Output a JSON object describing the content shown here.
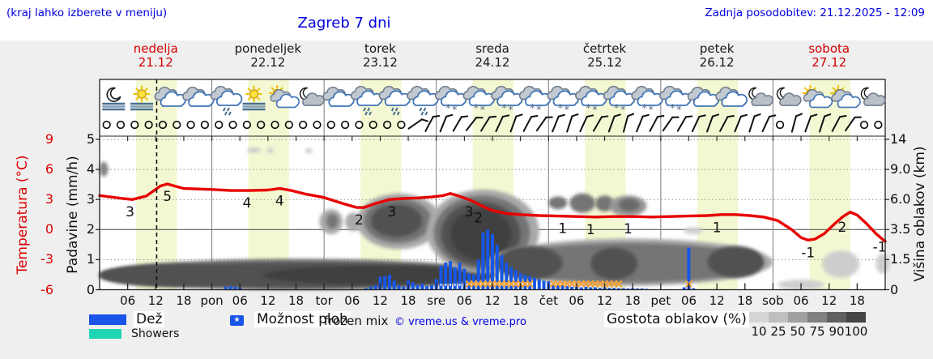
{
  "header": {
    "hint": "(kraj lahko izberete v meniju)",
    "title": "Zagreb 7 dni",
    "updated": "Zadnja posodobitev: 21.12.2025 - 12:09"
  },
  "days": [
    {
      "name": "nedelja",
      "date": "21.12",
      "color": "#d40000"
    },
    {
      "name": "ponedeljek",
      "date": "22.12",
      "color": "#1a1a1a"
    },
    {
      "name": "torek",
      "date": "23.12",
      "color": "#1a1a1a"
    },
    {
      "name": "sreda",
      "date": "24.12",
      "color": "#1a1a1a"
    },
    {
      "name": "četrtek",
      "date": "25.12",
      "color": "#1a1a1a"
    },
    {
      "name": "petek",
      "date": "26.12",
      "color": "#1a1a1a"
    },
    {
      "name": "sobota",
      "date": "27.12",
      "color": "#d40000"
    }
  ],
  "axes": {
    "temp": {
      "title": "Temperatura (°C)",
      "color": "#dd0000",
      "ticks": [
        "9",
        "6",
        "3",
        "0",
        "-3",
        "-6"
      ]
    },
    "precip": {
      "title": "Padavine (mm/h)",
      "ticks": [
        "5",
        "4",
        "3",
        "2",
        "1",
        "0"
      ]
    },
    "cloud": {
      "title": "Višina oblakov (km)",
      "ticks": [
        "14",
        "9.0",
        "6.0",
        "3.5",
        "1.5",
        "0"
      ]
    }
  },
  "legend": {
    "rain": "Dež",
    "rain_color": "#1855e8",
    "showers": "Showers",
    "showers_color": "#1fd5b4",
    "chance": "Možnost ploh",
    "chance_star": "★",
    "frozen": "frozen mix",
    "copyright": "© vreme.us & vreme.pro",
    "cloud_density": "Gostota oblakov (%)",
    "density_ticks": [
      "10",
      "25",
      "50",
      "75",
      "90",
      "100"
    ]
  },
  "chart_data": {
    "type": "meteogram",
    "title": "Zagreb 7 dni",
    "x_unit": "hours from 21.12 00:00",
    "x_range": [
      0,
      168
    ],
    "now_hour": 12.2,
    "daylight_band": {
      "start_hour": 7.8,
      "length_hours": 8.7,
      "color": "#f4f8d2"
    },
    "temperature": {
      "unit": "°C",
      "color": "#e80000",
      "axis_range": [
        -6,
        9
      ],
      "points": [
        [
          0,
          3.4
        ],
        [
          5,
          3.1
        ],
        [
          7,
          3.0
        ],
        [
          10,
          3.35
        ],
        [
          13,
          4.35
        ],
        [
          14.5,
          4.55
        ],
        [
          16,
          4.35
        ],
        [
          18,
          4.1
        ],
        [
          21,
          4.05
        ],
        [
          24,
          4.0
        ],
        [
          28,
          3.9
        ],
        [
          32,
          3.9
        ],
        [
          36,
          3.95
        ],
        [
          38.5,
          4.1
        ],
        [
          41,
          3.9
        ],
        [
          44,
          3.55
        ],
        [
          48,
          3.2
        ],
        [
          52,
          2.6
        ],
        [
          55,
          2.2
        ],
        [
          56.5,
          2.2
        ],
        [
          59,
          2.6
        ],
        [
          62,
          3.0
        ],
        [
          65,
          3.1
        ],
        [
          68,
          3.15
        ],
        [
          71,
          3.25
        ],
        [
          73.5,
          3.4
        ],
        [
          75,
          3.6
        ],
        [
          76.5,
          3.4
        ],
        [
          78,
          3.15
        ],
        [
          80,
          2.8
        ],
        [
          82,
          2.3
        ],
        [
          84,
          1.9
        ],
        [
          87,
          1.6
        ],
        [
          90,
          1.5
        ],
        [
          94,
          1.4
        ],
        [
          98,
          1.35
        ],
        [
          102,
          1.3
        ],
        [
          106,
          1.25
        ],
        [
          110,
          1.3
        ],
        [
          114,
          1.3
        ],
        [
          118,
          1.25
        ],
        [
          122,
          1.3
        ],
        [
          126,
          1.35
        ],
        [
          130,
          1.4
        ],
        [
          133,
          1.5
        ],
        [
          136,
          1.5
        ],
        [
          139,
          1.4
        ],
        [
          142,
          1.25
        ],
        [
          145,
          0.9
        ],
        [
          148,
          0.0
        ],
        [
          150,
          -0.8
        ],
        [
          151.5,
          -1.05
        ],
        [
          153,
          -0.95
        ],
        [
          155,
          -0.4
        ],
        [
          157,
          0.5
        ],
        [
          159,
          1.3
        ],
        [
          160.5,
          1.75
        ],
        [
          162,
          1.45
        ],
        [
          164,
          0.6
        ],
        [
          166,
          -0.4
        ],
        [
          168,
          -1.2
        ]
      ],
      "labels": [
        [
          6.5,
          3.0,
          "3"
        ],
        [
          14.5,
          4.55,
          "5"
        ],
        [
          31.5,
          3.9,
          "4"
        ],
        [
          38.5,
          4.1,
          "4"
        ],
        [
          55.5,
          2.2,
          "2"
        ],
        [
          62.5,
          3.0,
          "3"
        ],
        [
          79,
          3.0,
          "3"
        ],
        [
          81,
          2.4,
          "2"
        ],
        [
          99,
          1.35,
          "1"
        ],
        [
          105,
          1.25,
          "1"
        ],
        [
          113,
          1.3,
          "1"
        ],
        [
          132,
          1.45,
          "1"
        ],
        [
          151.5,
          -1.05,
          "-1"
        ],
        [
          158.8,
          1.5,
          "2"
        ],
        [
          166.8,
          -0.5,
          "-1"
        ]
      ]
    },
    "precipitation": {
      "unit": "mm/h",
      "color": "#1757e8",
      "axis_range": [
        0,
        5
      ],
      "bars": [
        [
          27,
          0.1
        ],
        [
          28,
          0.12
        ],
        [
          29,
          0.1
        ],
        [
          30,
          0.08
        ],
        [
          57,
          0.05
        ],
        [
          58,
          0.1
        ],
        [
          59,
          0.15
        ],
        [
          60,
          0.43
        ],
        [
          61,
          0.45
        ],
        [
          62,
          0.5
        ],
        [
          63,
          0.3
        ],
        [
          64,
          0.15
        ],
        [
          65,
          0.1
        ],
        [
          66,
          0.3
        ],
        [
          67,
          0.25
        ],
        [
          68,
          0.15
        ],
        [
          69,
          0.2
        ],
        [
          70,
          0.12
        ],
        [
          71,
          0.15
        ],
        [
          72,
          0.35
        ],
        [
          73,
          0.8
        ],
        [
          74,
          0.9
        ],
        [
          75,
          0.95
        ],
        [
          76,
          0.75
        ],
        [
          77,
          0.9
        ],
        [
          78,
          0.7
        ],
        [
          79,
          0.55
        ],
        [
          80,
          0.5
        ],
        [
          81,
          1.0
        ],
        [
          82,
          1.9
        ],
        [
          83,
          2.0
        ],
        [
          84,
          1.85
        ],
        [
          85,
          1.5
        ],
        [
          86,
          1.15
        ],
        [
          87,
          0.9
        ],
        [
          88,
          0.75
        ],
        [
          89,
          0.65
        ],
        [
          90,
          0.55
        ],
        [
          91,
          0.5
        ],
        [
          92,
          0.45
        ],
        [
          93,
          0.4
        ],
        [
          94,
          0.35
        ],
        [
          95,
          0.3
        ],
        [
          96,
          0.28
        ],
        [
          97,
          0.22
        ],
        [
          98,
          0.18
        ],
        [
          99,
          0.15
        ],
        [
          100,
          0.12
        ],
        [
          101,
          0.1
        ],
        [
          102,
          0.1
        ],
        [
          103,
          0.08
        ],
        [
          104,
          0.1
        ],
        [
          105,
          0.08
        ],
        [
          106,
          0.08
        ],
        [
          107,
          0.06
        ],
        [
          108,
          0.08
        ],
        [
          109,
          0.06
        ],
        [
          110,
          0.06
        ],
        [
          111,
          0.05
        ],
        [
          112,
          0.05
        ],
        [
          113,
          0.04
        ],
        [
          114,
          0.05
        ],
        [
          115,
          0.04
        ],
        [
          116,
          0.04
        ],
        [
          117,
          0.03
        ],
        [
          125,
          0.08
        ],
        [
          126,
          1.4
        ],
        [
          127,
          0.05
        ]
      ]
    },
    "frozen_mix_hours": [
      79,
      80,
      81,
      82,
      83,
      84,
      85,
      86,
      87,
      88,
      89,
      90,
      91,
      92,
      97,
      98,
      99,
      100,
      101,
      102,
      103,
      104,
      105,
      106,
      107,
      108,
      109,
      110,
      111,
      126
    ],
    "frozen_mix_color": "#f2a33c",
    "shower_possible_hours": [
      73,
      74,
      75,
      76,
      77,
      78,
      86,
      87,
      88,
      89,
      90,
      91,
      92
    ],
    "cloud_layers": {
      "y_unit": "km",
      "axis_values_km": [
        0,
        1.5,
        3.5,
        6,
        9,
        14
      ],
      "density_colors": {
        "25": "#cdcdcd",
        "50": "#a9a9a9",
        "60": "#969696",
        "70": "#838383",
        "75": "#747474",
        "80": "#6a6a6a",
        "90": "#515151",
        "100": "#404040"
      },
      "blobs": [
        [
          0,
          85,
          0,
          1.55,
          75
        ],
        [
          0,
          84,
          0.1,
          1.35,
          90
        ],
        [
          0,
          30,
          0.15,
          1.25,
          90
        ],
        [
          35,
          84,
          0.25,
          1.2,
          100
        ],
        [
          47,
          52,
          3.2,
          5.2,
          50
        ],
        [
          48.5,
          51,
          3.6,
          4.8,
          75
        ],
        [
          52.5,
          56,
          3.4,
          4.9,
          50
        ],
        [
          55,
          73,
          2.2,
          6.6,
          50
        ],
        [
          56.5,
          71,
          2.6,
          6.1,
          75
        ],
        [
          58,
          69,
          3.0,
          5.6,
          90
        ],
        [
          70,
          94,
          0.8,
          7.0,
          50
        ],
        [
          71.5,
          92,
          1.0,
          6.4,
          75
        ],
        [
          73,
          90,
          1.2,
          5.8,
          90
        ],
        [
          75,
          88,
          1.5,
          5.2,
          100
        ],
        [
          83,
          144,
          0.2,
          2.9,
          50
        ],
        [
          84,
          142,
          0.35,
          2.6,
          75
        ],
        [
          85,
          99,
          0.5,
          2.4,
          90
        ],
        [
          105,
          115,
          0.5,
          2.3,
          90
        ],
        [
          130,
          142,
          0.6,
          2.4,
          90
        ],
        [
          96,
          100,
          5.2,
          6.3,
          75
        ],
        [
          100.5,
          106,
          4.9,
          6.6,
          75
        ],
        [
          106,
          110,
          5.0,
          6.4,
          75
        ],
        [
          109,
          117,
          4.6,
          6.4,
          60
        ],
        [
          111,
          115.5,
          5.0,
          6.1,
          80
        ],
        [
          31.5,
          34.5,
          11.8,
          12.6,
          25
        ],
        [
          35.8,
          37.2,
          11.9,
          12.4,
          20
        ],
        [
          44,
          45.5,
          11.8,
          12.4,
          20
        ],
        [
          0,
          1.8,
          8.3,
          10.3,
          70
        ],
        [
          125,
          129,
          3.2,
          3.7,
          25
        ],
        [
          145,
          155,
          0,
          0.5,
          25
        ],
        [
          154.5,
          162.5,
          0.6,
          2.1,
          25
        ],
        [
          166,
          169,
          0.8,
          1.9,
          25
        ]
      ]
    },
    "icons": [
      "moon-fog",
      "sun-fog",
      "clouds",
      "clouds",
      "cloud-drizzle",
      "sun-fog",
      "sun-cloud",
      "moon-cloud",
      "clouds",
      "cloud-drizzle",
      "cloud-drizzle",
      "cloud-drizzle",
      "cloud-snow",
      "cloud-snow",
      "cloud-snow",
      "cloud-snow",
      "cloud-snow",
      "cloud-snow",
      "cloud-snow",
      "cloud-snow",
      "cloud-snow",
      "clouds",
      "clouds",
      "moon-cloud",
      "moon-cloud",
      "sun-cloud",
      "sun-cloud",
      "moon-cloud"
    ],
    "wind_barb_angles": [
      null,
      null,
      null,
      null,
      null,
      null,
      null,
      null,
      null,
      null,
      null,
      null,
      null,
      null,
      null,
      null,
      null,
      null,
      null,
      null,
      null,
      null,
      55,
      28,
      22,
      30,
      38,
      32,
      25,
      20,
      28,
      35,
      22,
      18,
      25,
      30,
      20,
      15,
      22,
      28,
      35,
      30,
      25,
      20,
      28,
      22,
      18,
      25,
      null,
      15,
      20,
      18,
      28,
      35,
      null,
      null
    ],
    "time_ticks": [
      [
        6,
        "06"
      ],
      [
        12,
        "12"
      ],
      [
        18,
        "18"
      ],
      [
        24,
        "pon"
      ],
      [
        30,
        "06"
      ],
      [
        36,
        "12"
      ],
      [
        42,
        "18"
      ],
      [
        48,
        "tor"
      ],
      [
        54,
        "06"
      ],
      [
        60,
        "12"
      ],
      [
        66,
        "18"
      ],
      [
        72,
        "sre"
      ],
      [
        78,
        "06"
      ],
      [
        84,
        "12"
      ],
      [
        90,
        "18"
      ],
      [
        96,
        "čet"
      ],
      [
        102,
        "06"
      ],
      [
        108,
        "12"
      ],
      [
        114,
        "18"
      ],
      [
        120,
        "pet"
      ],
      [
        126,
        "06"
      ],
      [
        132,
        "12"
      ],
      [
        138,
        "18"
      ],
      [
        144,
        "sob"
      ],
      [
        150,
        "06"
      ],
      [
        156,
        "12"
      ],
      [
        162,
        "18"
      ]
    ]
  }
}
